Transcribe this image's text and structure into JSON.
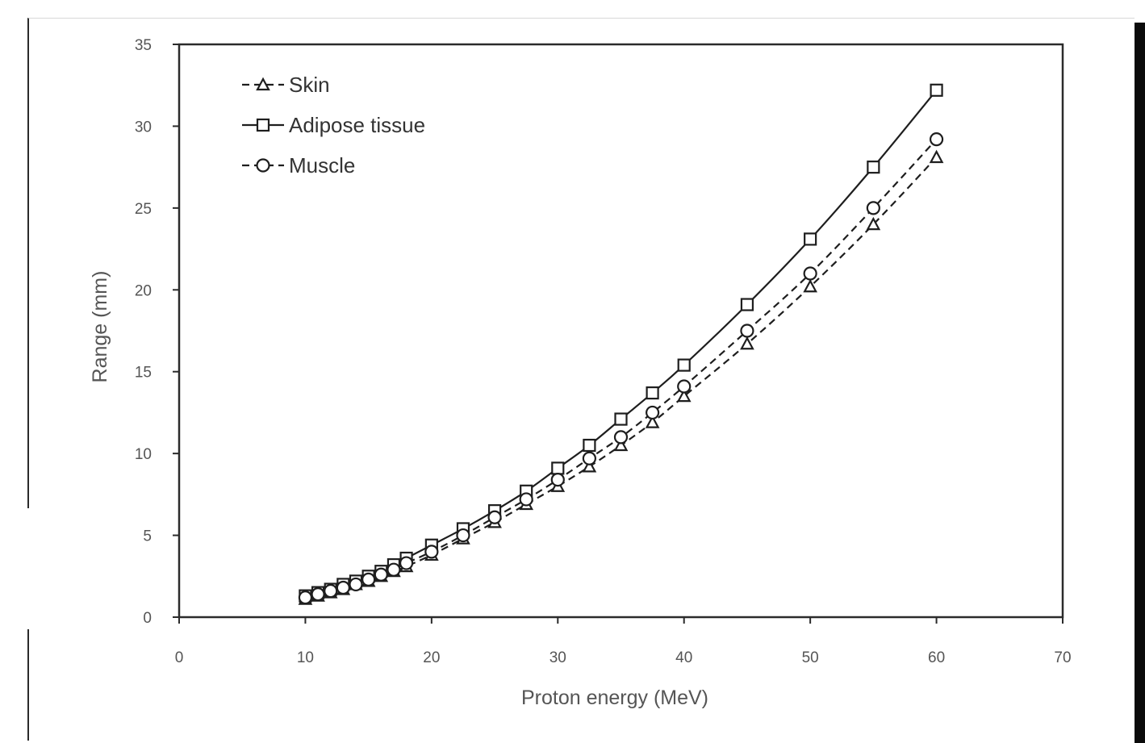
{
  "chart_data": {
    "type": "line",
    "title": "",
    "xlabel": "Proton energy (MeV)",
    "ylabel": "Range (mm)",
    "xlim": [
      0,
      70
    ],
    "ylim": [
      0,
      35
    ],
    "xticks": [
      "0",
      "10",
      "20",
      "30",
      "40",
      "50",
      "60",
      "70"
    ],
    "yticks": [
      "0",
      "5",
      "10",
      "15",
      "20",
      "25",
      "30",
      "35"
    ],
    "grid": false,
    "legend_position": "top-left",
    "x": [
      10,
      11,
      12,
      13,
      14,
      15,
      16,
      17,
      18,
      20,
      22.5,
      25,
      27.5,
      30,
      32.5,
      35,
      37.5,
      40,
      45,
      50,
      55,
      60
    ],
    "series": [
      {
        "name": "Skin",
        "marker": "triangle",
        "line": "dashed",
        "values": [
          1.1,
          1.3,
          1.5,
          1.7,
          2.0,
          2.2,
          2.5,
          2.8,
          3.1,
          3.8,
          4.8,
          5.8,
          6.9,
          8.0,
          9.2,
          10.5,
          11.9,
          13.5,
          16.7,
          20.2,
          24.0,
          28.1
        ]
      },
      {
        "name": "Adipose tissue",
        "marker": "square",
        "line": "solid",
        "values": [
          1.3,
          1.5,
          1.7,
          2.0,
          2.2,
          2.5,
          2.8,
          3.2,
          3.6,
          4.4,
          5.4,
          6.5,
          7.7,
          9.1,
          10.5,
          12.1,
          13.7,
          15.4,
          19.1,
          23.1,
          27.5,
          32.2
        ]
      },
      {
        "name": "Muscle",
        "marker": "circle",
        "line": "dashed",
        "values": [
          1.2,
          1.4,
          1.6,
          1.8,
          2.0,
          2.3,
          2.6,
          2.9,
          3.3,
          4.0,
          5.0,
          6.1,
          7.2,
          8.4,
          9.7,
          11.0,
          12.5,
          14.1,
          17.5,
          21.0,
          25.0,
          29.2
        ]
      }
    ]
  }
}
